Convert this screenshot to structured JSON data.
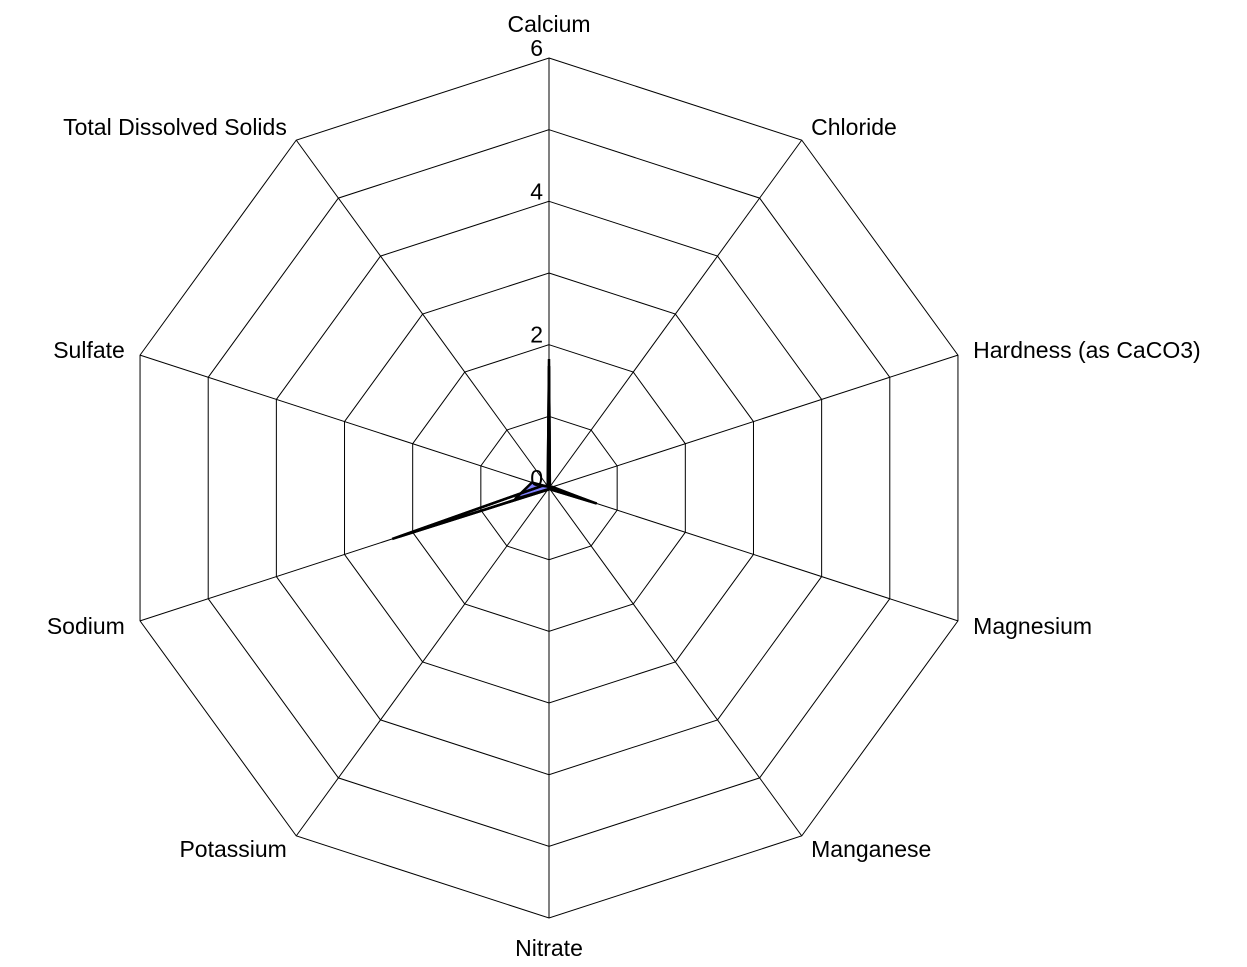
{
  "chart_data": {
    "type": "radar",
    "axes": [
      "Calcium",
      "Chloride",
      "Hardness (as CaCO3)",
      "Magnesium",
      "Manganese",
      "Nitrate",
      "Potassium",
      "Sodium",
      "Sulfate",
      "Total Dissolved Solids"
    ],
    "r_ticks": [
      0,
      2,
      4,
      6
    ],
    "r_range": [
      0,
      6
    ],
    "grid": true,
    "legend": "none",
    "series": [
      {
        "values": [
          1.7,
          0.02,
          0.03,
          0.03,
          0.01,
          0.01,
          0.02,
          0.5,
          0.25,
          0.02
        ],
        "fill": "#8080ff",
        "stroke": "#000000"
      },
      {
        "values": [
          1.8,
          0.02,
          0.05,
          0.6,
          0.02,
          0.01,
          0.03,
          2.2,
          0.1,
          0.03
        ],
        "fill": "none",
        "stroke": "#000000"
      },
      {
        "values": [
          1.7,
          0.02,
          0.04,
          0.7,
          0.02,
          0.01,
          0.03,
          2.3,
          0.1,
          0.03
        ],
        "fill": "none",
        "stroke": "#000000"
      }
    ]
  }
}
